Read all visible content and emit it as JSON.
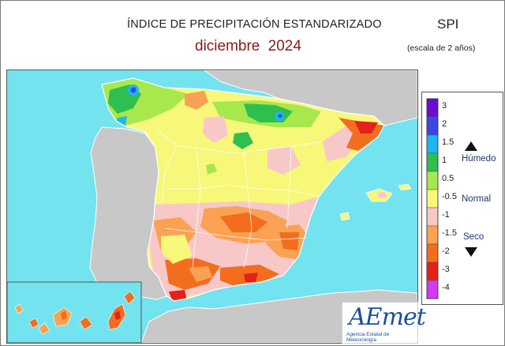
{
  "title": "ÍNDICE DE PRECIPITACIÓN ESTANDARIZADO",
  "subtitle": "diciembre  2024",
  "index_code": "SPI",
  "scale_note": "(escala de 2 años)",
  "legend": {
    "classes": [
      {
        "color": "#6a0dd0",
        "label": "3"
      },
      {
        "color": "#3b46e6",
        "label": "2"
      },
      {
        "color": "#1fb5ee",
        "label": "1.5"
      },
      {
        "color": "#2fbf4f",
        "label": "1"
      },
      {
        "color": "#a7e84c",
        "label": "0.5"
      },
      {
        "color": "#f7f77a",
        "label": "-0.5"
      },
      {
        "color": "#f8c8c8",
        "label": "-1"
      },
      {
        "color": "#f9a253",
        "label": "-1.5"
      },
      {
        "color": "#f36d1f",
        "label": "-2"
      },
      {
        "color": "#e4211a",
        "label": "-3"
      },
      {
        "color": "#d43af2",
        "label": "-4"
      }
    ],
    "words": {
      "wet": "Húmedo",
      "normal": "Normal",
      "dry": "Seco"
    },
    "up_icon": "triangle-up-icon",
    "down_icon": "triangle-down-icon"
  },
  "logo": {
    "name": "AEmet",
    "subtitle": "Agencia Estatal de Meteorología"
  },
  "colors": {
    "sea": "#73e3ef",
    "land_other": "#c8c8c8",
    "border": "#ffffff"
  }
}
